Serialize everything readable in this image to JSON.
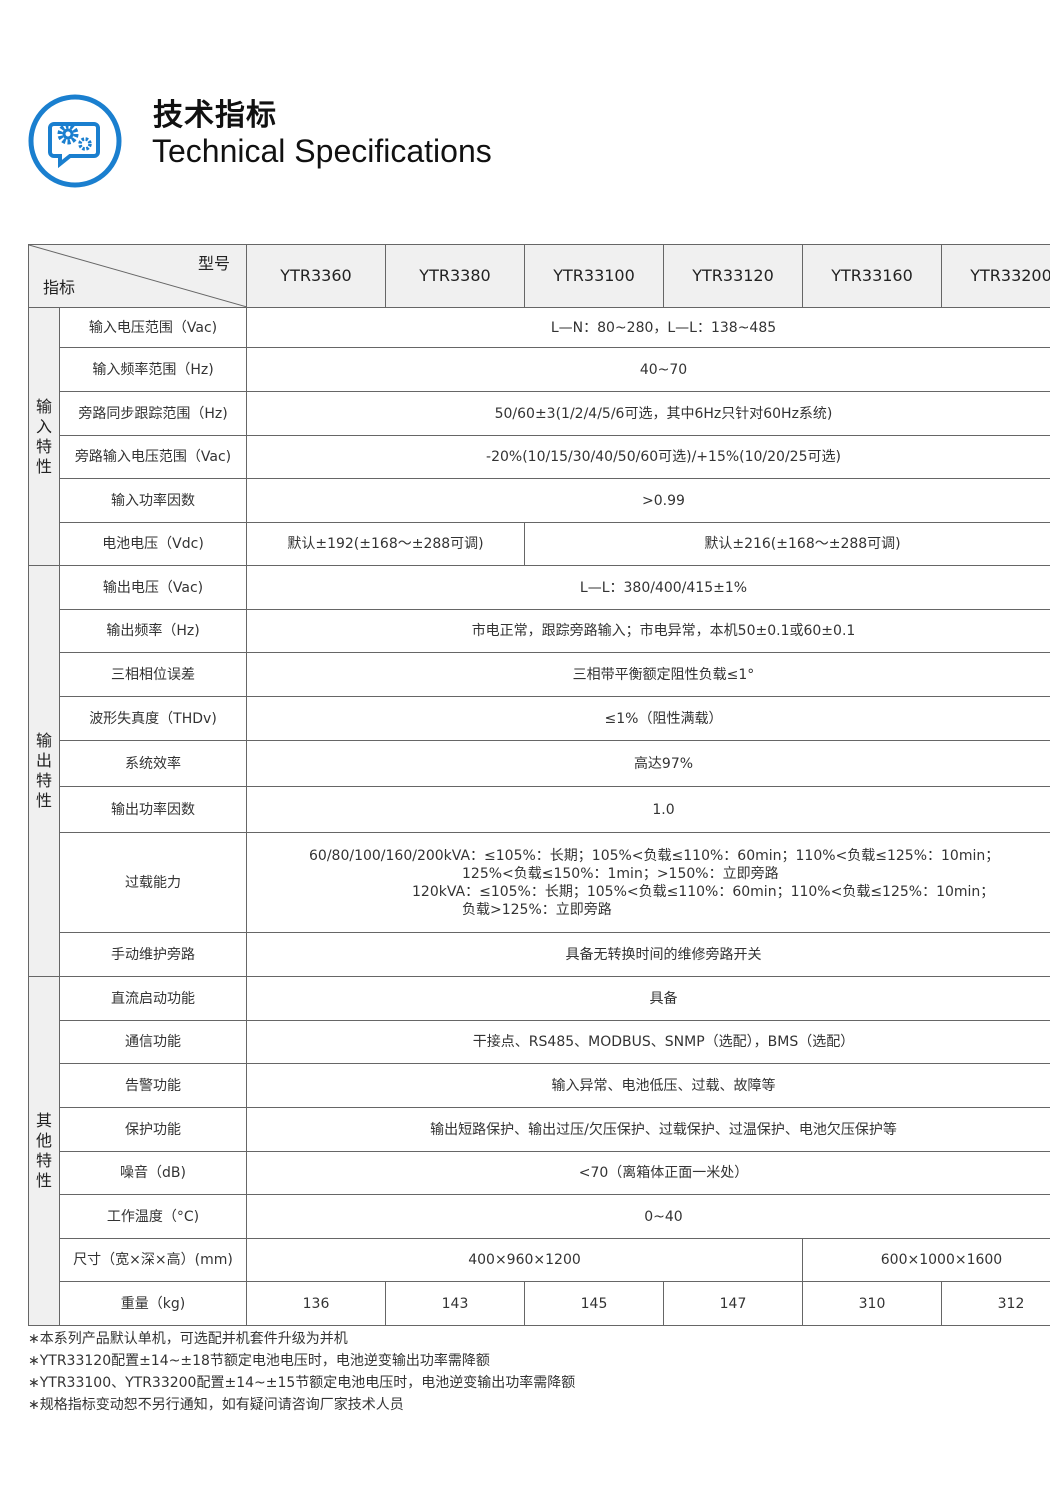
{
  "header": {
    "title_cn": "技术指标",
    "title_en": "Technical Specifications",
    "icon": "gears-chat-icon",
    "accent": "#1a7fcf"
  },
  "table": {
    "corner_top": "型号",
    "corner_bottom": "指标",
    "models": [
      "YTR3360",
      "YTR3380",
      "YTR33100",
      "YTR33120",
      "YTR33160",
      "YTR33200"
    ],
    "groups": [
      {
        "name": "输入特性",
        "rows": [
          {
            "label": "输入电压范围（Vac)",
            "h": 40,
            "cells": [
              {
                "text": "L—N：80~280，L—L：138~485",
                "span": 6
              }
            ]
          },
          {
            "label": "输入频率范围（Hz)",
            "h": 44,
            "cells": [
              {
                "text": "40~70",
                "span": 6
              }
            ]
          },
          {
            "label": "旁路同步跟踪范围（Hz)",
            "h": 44,
            "cells": [
              {
                "text": "50/60±3(1/2/4/5/6可选，其中6Hz只针对60Hz系统)",
                "span": 6
              }
            ]
          },
          {
            "label": "旁路输入电压范围（Vac)",
            "h": 43,
            "cells": [
              {
                "text": "-20%(10/15/30/40/50/60可选)/+15%(10/20/25可选)",
                "span": 6
              }
            ]
          },
          {
            "label": "输入功率因数",
            "h": 44,
            "cells": [
              {
                "text": ">0.99",
                "span": 6
              }
            ]
          },
          {
            "label": "电池电压（Vdc)",
            "h": 43,
            "cells": [
              {
                "text": "默认±192(±168～±288可调)",
                "span": 2
              },
              {
                "text": "默认±216(±168～±288可调)",
                "span": 4
              }
            ]
          }
        ]
      },
      {
        "name": "输出特性",
        "rows": [
          {
            "label": "输出电压（Vac)",
            "h": 44,
            "cells": [
              {
                "text": "L—L：380/400/415±1%",
                "span": 6
              }
            ]
          },
          {
            "label": "输出频率（Hz)",
            "h": 43,
            "cells": [
              {
                "text": "市电正常，跟踪旁路输入；市电异常，本机50±0.1或60±0.1",
                "span": 6
              }
            ]
          },
          {
            "label": "三相相位误差",
            "h": 44,
            "cells": [
              {
                "text": "三相带平衡额定阻性负载≤1°",
                "span": 6
              }
            ]
          },
          {
            "label": "波形失真度（THDv)",
            "h": 44,
            "cells": [
              {
                "text": "≤1%（阻性满载）",
                "span": 6
              }
            ]
          },
          {
            "label": "系统效率",
            "h": 46,
            "cells": [
              {
                "text": "高达97%",
                "span": 6
              }
            ]
          },
          {
            "label": "输出功率因数",
            "h": 46,
            "cells": [
              {
                "text": "1.0",
                "span": 6
              }
            ]
          },
          {
            "label": "过载能力",
            "h": 100,
            "overload": [
              "60/80/100/160/200kVA：≤105%：长期；105%<负载≤110%：60min；110%<负载≤125%：10min；",
              "125%<负载≤150%：1min；>150%：立即旁路",
              "120kVA：≤105%：长期；105%<负载≤110%：60min；110%<负载≤125%：10min；",
              "负载>125%：立即旁路"
            ]
          },
          {
            "label": "手动维护旁路",
            "h": 44,
            "cells": [
              {
                "text": "具备无转换时间的维修旁路开关",
                "span": 6
              }
            ]
          }
        ]
      },
      {
        "name": "其他特性",
        "rows": [
          {
            "label": "直流启动功能",
            "h": 44,
            "cells": [
              {
                "text": "具备",
                "span": 6
              }
            ]
          },
          {
            "label": "通信功能",
            "h": 43,
            "cells": [
              {
                "text": "干接点、RS485、MODBUS、SNMP（选配），BMS（选配）",
                "span": 6
              }
            ]
          },
          {
            "label": "告警功能",
            "h": 44,
            "cells": [
              {
                "text": "输入异常、电池低压、过载、故障等",
                "span": 6
              }
            ]
          },
          {
            "label": "保护功能",
            "h": 44,
            "cells": [
              {
                "text": "输出短路保护、输出过压/欠压保护、过载保护、过温保护、电池欠压保护等",
                "span": 6
              }
            ]
          },
          {
            "label": "噪音（dB)",
            "h": 43,
            "cells": [
              {
                "text": "<70（离箱体正面一米处）",
                "span": 6
              }
            ]
          },
          {
            "label": "工作温度（°C)",
            "h": 44,
            "cells": [
              {
                "text": "0~40",
                "span": 6
              }
            ]
          },
          {
            "label": "尺寸（宽×深×高）(mm)",
            "h": 43,
            "cells": [
              {
                "text": "400×960×1200",
                "span": 4
              },
              {
                "text": "600×1000×1600",
                "span": 2
              }
            ]
          },
          {
            "label": "重量（kg)",
            "h": 44,
            "cells": [
              {
                "text": "136",
                "span": 1
              },
              {
                "text": "143",
                "span": 1
              },
              {
                "text": "145",
                "span": 1
              },
              {
                "text": "147",
                "span": 1
              },
              {
                "text": "310",
                "span": 1
              },
              {
                "text": "312",
                "span": 1
              }
            ]
          }
        ]
      }
    ]
  },
  "notes": [
    "∗本系列产品默认单机，可选配并机套件升级为并机",
    "∗YTR33120配置±14~±18节额定电池电压时，电池逆变输出功率需降额",
    "∗YTR33100、YTR33200配置±14~±15节额定电池电压时，电池逆变输出功率需降额",
    "∗规格指标变动恕不另行通知，如有疑问请咨询厂家技术人员"
  ]
}
